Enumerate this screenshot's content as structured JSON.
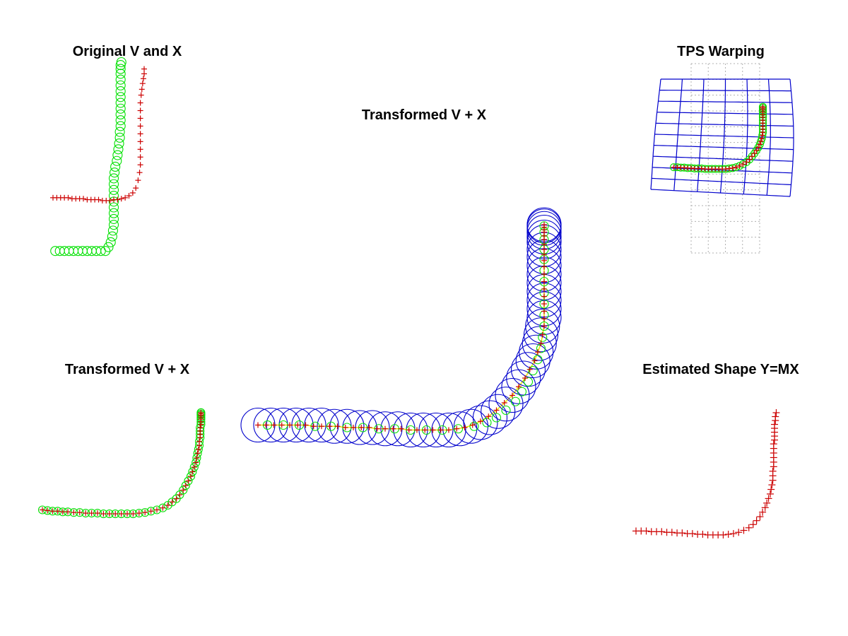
{
  "colors": {
    "template_markers": "#00e000",
    "data_markers": "#cc0000",
    "correspondence_circles": "#0000cc",
    "tps_grid": "#0000cc",
    "reference_grid": "#b0b0b0",
    "link_lines": "#e8e800"
  },
  "chart_data": [
    {
      "type": "scatter",
      "title": "Original V and X",
      "series": [
        {
          "marker": "circle",
          "color": "green",
          "x": [
            -0.97,
            -0.91,
            -0.85,
            -0.79,
            -0.73,
            -0.67,
            -0.61,
            -0.55,
            -0.49,
            -0.43,
            -0.37,
            -0.31,
            -0.27,
            -0.24,
            -0.22,
            -0.21,
            -0.2,
            -0.2,
            -0.2,
            -0.2,
            -0.2,
            -0.2,
            -0.2,
            -0.2,
            -0.2,
            -0.19,
            -0.18,
            -0.16,
            -0.15,
            -0.14,
            -0.13,
            -0.12,
            -0.12,
            -0.11,
            -0.11,
            -0.11,
            -0.11,
            -0.11,
            -0.11,
            -0.11,
            -0.11,
            -0.11,
            -0.11,
            -0.11,
            -0.11,
            -0.1
          ],
          "y": [
            -0.95,
            -0.95,
            -0.95,
            -0.95,
            -0.95,
            -0.95,
            -0.95,
            -0.95,
            -0.95,
            -0.95,
            -0.95,
            -0.95,
            -0.91,
            -0.86,
            -0.8,
            -0.74,
            -0.68,
            -0.62,
            -0.56,
            -0.5,
            -0.44,
            -0.38,
            -0.32,
            -0.26,
            -0.2,
            -0.14,
            -0.08,
            -0.02,
            0.04,
            0.1,
            0.16,
            0.22,
            0.28,
            0.34,
            0.4,
            0.46,
            0.52,
            0.58,
            0.64,
            0.7,
            0.76,
            0.82,
            0.88,
            0.93,
            0.97,
            1.0
          ]
        },
        {
          "marker": "plus",
          "color": "red",
          "x": [
            -1.0,
            -0.95,
            -0.9,
            -0.85,
            -0.8,
            -0.75,
            -0.7,
            -0.65,
            -0.6,
            -0.55,
            -0.5,
            -0.45,
            -0.4,
            -0.35,
            -0.3,
            -0.25,
            -0.2,
            -0.15,
            -0.1,
            -0.05,
            0.0,
            0.05,
            0.09,
            0.12,
            0.14,
            0.15,
            0.15,
            0.15,
            0.15,
            0.15,
            0.15,
            0.15,
            0.15,
            0.15,
            0.16,
            0.17,
            0.18,
            0.19,
            0.2,
            0.2
          ],
          "y": [
            -0.4,
            -0.4,
            -0.4,
            -0.4,
            -0.4,
            -0.41,
            -0.41,
            -0.41,
            -0.41,
            -0.42,
            -0.42,
            -0.42,
            -0.42,
            -0.43,
            -0.43,
            -0.43,
            -0.42,
            -0.42,
            -0.41,
            -0.4,
            -0.38,
            -0.35,
            -0.3,
            -0.22,
            -0.14,
            -0.06,
            0.02,
            0.1,
            0.18,
            0.26,
            0.34,
            0.42,
            0.5,
            0.58,
            0.66,
            0.72,
            0.78,
            0.83,
            0.88,
            0.93
          ]
        }
      ]
    },
    {
      "type": "scatter",
      "title": "Transformed V + X",
      "series": [
        {
          "marker": "circle",
          "color": "green",
          "x": [
            -1.0,
            -0.94,
            -0.88,
            -0.82,
            -0.76,
            -0.7,
            -0.63,
            -0.56,
            -0.49,
            -0.42,
            -0.35,
            -0.28,
            -0.21,
            -0.14,
            -0.07,
            0.0,
            0.07,
            0.14,
            0.21,
            0.28,
            0.35,
            0.42,
            0.48,
            0.53,
            0.58,
            0.62,
            0.66,
            0.69,
            0.72,
            0.75,
            0.77,
            0.79,
            0.81,
            0.82,
            0.83,
            0.84,
            0.85,
            0.85,
            0.86,
            0.86,
            0.86,
            0.86,
            0.87,
            0.87,
            0.87,
            0.87,
            0.87,
            0.87,
            0.87
          ],
          "y": [
            -0.5,
            -0.51,
            -0.52,
            -0.52,
            -0.53,
            -0.53,
            -0.54,
            -0.54,
            -0.55,
            -0.55,
            -0.55,
            -0.56,
            -0.56,
            -0.56,
            -0.56,
            -0.56,
            -0.56,
            -0.55,
            -0.54,
            -0.52,
            -0.5,
            -0.47,
            -0.43,
            -0.38,
            -0.33,
            -0.27,
            -0.2,
            -0.13,
            -0.06,
            0.01,
            0.08,
            0.15,
            0.22,
            0.29,
            0.36,
            0.42,
            0.48,
            0.54,
            0.6,
            0.65,
            0.7,
            0.75,
            0.8,
            0.84,
            0.88,
            0.91,
            0.94,
            0.96,
            0.98
          ]
        },
        {
          "marker": "plus",
          "color": "red",
          "x": [
            -1.0,
            -0.94,
            -0.88,
            -0.82,
            -0.76,
            -0.7,
            -0.63,
            -0.56,
            -0.49,
            -0.42,
            -0.35,
            -0.28,
            -0.21,
            -0.14,
            -0.07,
            0.0,
            0.07,
            0.14,
            0.21,
            0.28,
            0.35,
            0.42,
            0.48,
            0.53,
            0.58,
            0.62,
            0.66,
            0.69,
            0.72,
            0.75,
            0.77,
            0.79,
            0.81,
            0.82,
            0.83,
            0.84,
            0.85,
            0.85,
            0.86,
            0.86,
            0.86,
            0.86,
            0.87,
            0.87,
            0.87,
            0.87,
            0.87,
            0.87,
            0.87
          ],
          "y": [
            -0.5,
            -0.51,
            -0.52,
            -0.52,
            -0.53,
            -0.53,
            -0.54,
            -0.54,
            -0.55,
            -0.55,
            -0.55,
            -0.56,
            -0.56,
            -0.56,
            -0.56,
            -0.56,
            -0.56,
            -0.55,
            -0.54,
            -0.52,
            -0.5,
            -0.47,
            -0.43,
            -0.38,
            -0.33,
            -0.27,
            -0.2,
            -0.13,
            -0.06,
            0.01,
            0.08,
            0.15,
            0.22,
            0.29,
            0.36,
            0.42,
            0.48,
            0.54,
            0.6,
            0.65,
            0.7,
            0.75,
            0.8,
            0.84,
            0.88,
            0.91,
            0.94,
            0.96,
            0.98
          ]
        }
      ]
    },
    {
      "type": "scatter",
      "title": "Transformed V + X",
      "series": [
        {
          "marker": "large-circle",
          "color": "blue",
          "x": [
            -1.0,
            -0.92,
            -0.84,
            -0.76,
            -0.68,
            -0.6,
            -0.52,
            -0.44,
            -0.36,
            -0.28,
            -0.2,
            -0.12,
            -0.04,
            0.04,
            0.12,
            0.2,
            0.27,
            0.34,
            0.4,
            0.46,
            0.51,
            0.56,
            0.6,
            0.64,
            0.67,
            0.7,
            0.73,
            0.75,
            0.77,
            0.78,
            0.79,
            0.8,
            0.8,
            0.8,
            0.8,
            0.8,
            0.8,
            0.8,
            0.8,
            0.8,
            0.8,
            0.8,
            0.8,
            0.8,
            0.8,
            0.8
          ],
          "y": [
            -0.62,
            -0.62,
            -0.62,
            -0.62,
            -0.62,
            -0.62,
            -0.63,
            -0.63,
            -0.64,
            -0.64,
            -0.65,
            -0.65,
            -0.66,
            -0.66,
            -0.66,
            -0.66,
            -0.65,
            -0.63,
            -0.6,
            -0.56,
            -0.51,
            -0.45,
            -0.38,
            -0.31,
            -0.24,
            -0.17,
            -0.1,
            -0.03,
            0.04,
            0.11,
            0.18,
            0.25,
            0.32,
            0.39,
            0.46,
            0.53,
            0.6,
            0.67,
            0.74,
            0.8,
            0.86,
            0.9,
            0.94,
            0.97,
            0.99,
            1.0
          ]
        },
        {
          "marker": "circle",
          "color": "green",
          "x": [
            -0.94,
            -0.84,
            -0.74,
            -0.64,
            -0.54,
            -0.44,
            -0.34,
            -0.24,
            -0.14,
            -0.04,
            0.06,
            0.16,
            0.26,
            0.36,
            0.44,
            0.5,
            0.56,
            0.62,
            0.66,
            0.7,
            0.73,
            0.76,
            0.78,
            0.79,
            0.8,
            0.8,
            0.8,
            0.8,
            0.8,
            0.8,
            0.8,
            0.8,
            0.8,
            0.8,
            0.8
          ],
          "y": [
            -0.62,
            -0.62,
            -0.62,
            -0.63,
            -0.63,
            -0.64,
            -0.64,
            -0.65,
            -0.65,
            -0.66,
            -0.66,
            -0.66,
            -0.65,
            -0.63,
            -0.6,
            -0.56,
            -0.5,
            -0.43,
            -0.35,
            -0.27,
            -0.18,
            -0.09,
            0.0,
            0.09,
            0.18,
            0.27,
            0.36,
            0.45,
            0.54,
            0.63,
            0.72,
            0.8,
            0.88,
            0.94,
            0.99
          ]
        },
        {
          "marker": "plus",
          "color": "red",
          "x": [
            -1.0,
            -0.95,
            -0.9,
            -0.85,
            -0.8,
            -0.75,
            -0.7,
            -0.65,
            -0.6,
            -0.55,
            -0.5,
            -0.45,
            -0.4,
            -0.35,
            -0.3,
            -0.25,
            -0.2,
            -0.15,
            -0.1,
            -0.05,
            0.0,
            0.05,
            0.1,
            0.15,
            0.2,
            0.25,
            0.3,
            0.35,
            0.4,
            0.45,
            0.5,
            0.55,
            0.6,
            0.64,
            0.68,
            0.71,
            0.74,
            0.76,
            0.78,
            0.79,
            0.8,
            0.8,
            0.8,
            0.8,
            0.8,
            0.8,
            0.8,
            0.8,
            0.8,
            0.8,
            0.8,
            0.8,
            0.8,
            0.8,
            0.8,
            0.8,
            0.8,
            0.8,
            0.8
          ],
          "y": [
            -0.62,
            -0.62,
            -0.62,
            -0.62,
            -0.62,
            -0.62,
            -0.62,
            -0.63,
            -0.63,
            -0.63,
            -0.63,
            -0.64,
            -0.64,
            -0.64,
            -0.64,
            -0.65,
            -0.65,
            -0.65,
            -0.65,
            -0.66,
            -0.66,
            -0.66,
            -0.66,
            -0.66,
            -0.66,
            -0.65,
            -0.64,
            -0.62,
            -0.59,
            -0.55,
            -0.5,
            -0.44,
            -0.38,
            -0.31,
            -0.24,
            -0.17,
            -0.1,
            -0.03,
            0.04,
            0.11,
            0.18,
            0.24,
            0.3,
            0.36,
            0.42,
            0.48,
            0.54,
            0.6,
            0.66,
            0.71,
            0.76,
            0.8,
            0.84,
            0.88,
            0.91,
            0.94,
            0.96,
            0.98,
            1.0
          ]
        }
      ]
    },
    {
      "type": "scatter",
      "title": "TPS Warping",
      "grid": "warped-tps-grid",
      "series": [
        {
          "marker": "circle",
          "color": "green",
          "x": [
            -0.95,
            -0.88,
            -0.81,
            -0.74,
            -0.67,
            -0.6,
            -0.53,
            -0.46,
            -0.39,
            -0.32,
            -0.25,
            -0.18,
            -0.11,
            -0.04,
            0.03,
            0.1,
            0.17,
            0.24,
            0.31,
            0.38,
            0.45,
            0.52,
            0.58,
            0.63,
            0.68,
            0.72,
            0.76,
            0.79,
            0.81,
            0.83,
            0.84,
            0.85,
            0.85,
            0.85,
            0.85,
            0.85,
            0.85,
            0.85,
            0.85,
            0.85,
            0.85,
            0.85
          ],
          "y": [
            -0.42,
            -0.42,
            -0.43,
            -0.43,
            -0.44,
            -0.44,
            -0.45,
            -0.45,
            -0.45,
            -0.46,
            -0.46,
            -0.46,
            -0.46,
            -0.46,
            -0.46,
            -0.46,
            -0.45,
            -0.44,
            -0.42,
            -0.39,
            -0.35,
            -0.3,
            -0.24,
            -0.17,
            -0.1,
            -0.03,
            0.04,
            0.11,
            0.18,
            0.25,
            0.32,
            0.39,
            0.46,
            0.53,
            0.6,
            0.67,
            0.74,
            0.8,
            0.86,
            0.91,
            0.95,
            0.98
          ]
        },
        {
          "marker": "plus",
          "color": "red",
          "x": [
            -0.95,
            -0.88,
            -0.81,
            -0.74,
            -0.67,
            -0.6,
            -0.53,
            -0.46,
            -0.39,
            -0.32,
            -0.25,
            -0.18,
            -0.11,
            -0.04,
            0.03,
            0.1,
            0.17,
            0.24,
            0.31,
            0.38,
            0.45,
            0.52,
            0.58,
            0.63,
            0.68,
            0.72,
            0.76,
            0.79,
            0.81,
            0.83,
            0.84,
            0.85,
            0.85,
            0.85,
            0.85,
            0.85,
            0.85,
            0.85,
            0.85,
            0.85,
            0.85,
            0.85
          ],
          "y": [
            -0.42,
            -0.42,
            -0.43,
            -0.43,
            -0.44,
            -0.44,
            -0.45,
            -0.45,
            -0.45,
            -0.46,
            -0.46,
            -0.46,
            -0.46,
            -0.46,
            -0.46,
            -0.46,
            -0.45,
            -0.44,
            -0.42,
            -0.39,
            -0.35,
            -0.3,
            -0.24,
            -0.17,
            -0.1,
            -0.03,
            0.04,
            0.11,
            0.18,
            0.25,
            0.32,
            0.39,
            0.46,
            0.53,
            0.6,
            0.67,
            0.74,
            0.8,
            0.86,
            0.91,
            0.95,
            0.98
          ]
        }
      ]
    },
    {
      "type": "scatter",
      "title": "Estimated Shape Y=MX",
      "series": [
        {
          "marker": "plus",
          "color": "red",
          "x": [
            -1.0,
            -0.94,
            -0.88,
            -0.82,
            -0.76,
            -0.7,
            -0.64,
            -0.58,
            -0.52,
            -0.46,
            -0.4,
            -0.34,
            -0.28,
            -0.22,
            -0.16,
            -0.1,
            -0.04,
            0.02,
            0.08,
            0.14,
            0.2,
            0.26,
            0.32,
            0.37,
            0.41,
            0.45,
            0.48,
            0.51,
            0.53,
            0.55,
            0.57,
            0.58,
            0.59,
            0.6,
            0.6,
            0.6,
            0.61,
            0.61,
            0.61,
            0.61,
            0.61,
            0.61,
            0.62,
            0.62,
            0.62,
            0.62,
            0.62,
            0.63,
            0.63,
            0.64
          ],
          "y": [
            -0.82,
            -0.82,
            -0.82,
            -0.83,
            -0.83,
            -0.83,
            -0.84,
            -0.84,
            -0.85,
            -0.85,
            -0.86,
            -0.86,
            -0.87,
            -0.87,
            -0.88,
            -0.88,
            -0.88,
            -0.88,
            -0.87,
            -0.86,
            -0.84,
            -0.81,
            -0.77,
            -0.72,
            -0.66,
            -0.6,
            -0.53,
            -0.46,
            -0.39,
            -0.32,
            -0.25,
            -0.18,
            -0.11,
            -0.04,
            0.03,
            0.1,
            0.17,
            0.24,
            0.31,
            0.38,
            0.45,
            0.52,
            0.58,
            0.64,
            0.7,
            0.76,
            0.82,
            0.88,
            0.94,
            1.0
          ]
        }
      ]
    }
  ]
}
